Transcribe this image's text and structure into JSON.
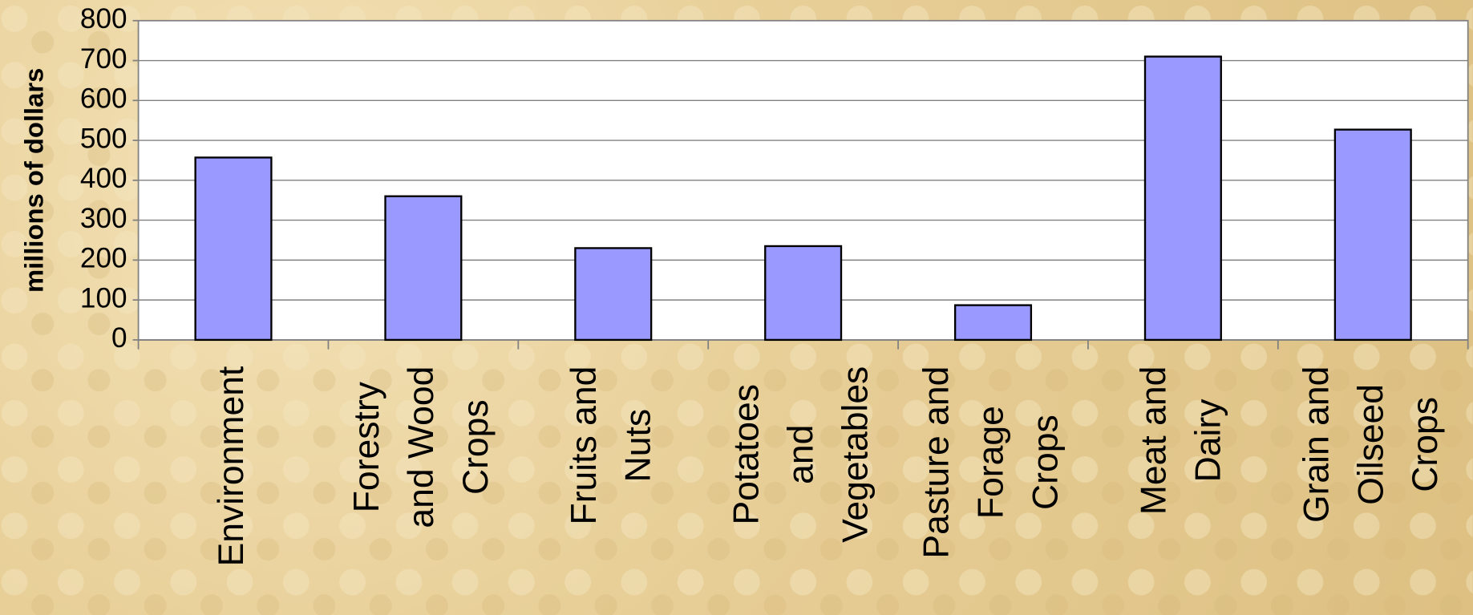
{
  "chart_data": {
    "type": "bar",
    "y_label": "millions of dollars",
    "categories": [
      "Environment",
      "Forestry and Wood Crops",
      "Fruits and Nuts",
      "Potatoes and Vegetables",
      "Pasture and Forage Crops",
      "Meat and Dairy",
      "Grain and Oilseed Crops"
    ],
    "values": [
      457,
      360,
      230,
      235,
      87,
      710,
      527
    ],
    "color": "#9999ff",
    "ylim": [
      0,
      800
    ],
    "yticks": [
      0,
      100,
      200,
      300,
      400,
      500,
      600,
      700,
      800
    ],
    "grid": true
  }
}
